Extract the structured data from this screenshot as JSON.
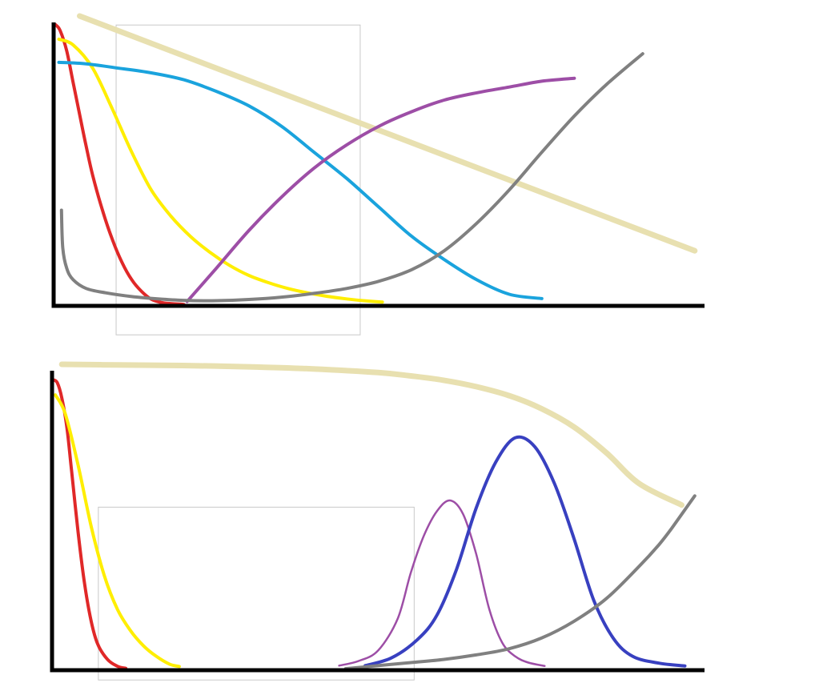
{
  "chart_data": [
    {
      "type": "line",
      "title": "",
      "xlabel": "",
      "ylabel": "",
      "xlim": [
        0,
        100
      ],
      "ylim": [
        0,
        100
      ],
      "grid": false,
      "legend": "none",
      "highlight_box": {
        "x": [
          9.6,
          47.1
        ],
        "y": [
          -10,
          96.9
        ]
      },
      "series": [
        {
          "color": "#e8e0b0",
          "width": 7,
          "x": [
            4,
            98.5
          ],
          "y": [
            100,
            19
          ]
        },
        {
          "color": "#e02828",
          "width": 4,
          "x": [
            0.3,
            1,
            2,
            3,
            4,
            5,
            6,
            7.5,
            9,
            10.5,
            12,
            13.5,
            15,
            16.5,
            18,
            19.5,
            20
          ],
          "y": [
            97,
            95,
            88,
            77,
            66,
            55,
            45,
            33,
            23,
            15,
            9,
            5,
            2.3,
            1.2,
            0.8,
            0.6,
            0.5
          ]
        },
        {
          "color": "#ffee00",
          "width": 4,
          "x": [
            0.8,
            3,
            6,
            9,
            12,
            15,
            18,
            21,
            24,
            27,
            30,
            33,
            36,
            39,
            42,
            45,
            48,
            50.5
          ],
          "y": [
            92,
            90,
            82,
            68,
            53,
            40,
            31,
            24,
            18.5,
            14,
            10.5,
            8,
            6,
            4.5,
            3.3,
            2.4,
            1.7,
            1.3
          ]
        },
        {
          "color": "#1aa3dd",
          "width": 4,
          "x": [
            0.8,
            5,
            10,
            15,
            20,
            25,
            30,
            35,
            40,
            45,
            50,
            55,
            60,
            65,
            70,
            75
          ],
          "y": [
            84,
            83.5,
            82,
            80.4,
            78,
            74,
            69,
            62,
            53,
            44,
            34,
            24,
            16,
            9,
            4,
            2.5
          ]
        },
        {
          "color": "#9d4ea6",
          "width": 4,
          "x": [
            20.5,
            25,
            30,
            35,
            40,
            45,
            50,
            55,
            60,
            65,
            70,
            75,
            80
          ],
          "y": [
            1.5,
            13,
            26,
            37.5,
            47.5,
            55.5,
            62,
            67,
            71,
            73.5,
            75.5,
            77.5,
            78.5
          ]
        },
        {
          "color": "#808080",
          "width": 4,
          "x": [
            1.2,
            1.4,
            2,
            3,
            5,
            8,
            12,
            16,
            20,
            25,
            30,
            35,
            40,
            45,
            50,
            55,
            60,
            65,
            70,
            75,
            80,
            85,
            90.5
          ],
          "y": [
            33,
            20,
            13,
            9,
            6,
            4.5,
            3.2,
            2.4,
            1.9,
            1.8,
            2.2,
            3.0,
            4.3,
            6.0,
            8.5,
            12.5,
            19,
            28.5,
            40,
            53,
            65.5,
            76.5,
            87
          ]
        }
      ]
    },
    {
      "type": "line",
      "title": "",
      "xlabel": "",
      "ylabel": "",
      "xlim": [
        0,
        100
      ],
      "ylim": [
        0,
        100
      ],
      "grid": false,
      "legend": "none",
      "highlight_box": {
        "x": [
          7.1,
          55.5
        ],
        "y": [
          -3.2,
          53.3
        ]
      },
      "series": [
        {
          "color": "#e8e0b0",
          "width": 7,
          "x": [
            1.5,
            10,
            20,
            30,
            40,
            50,
            55,
            60,
            65,
            70,
            75,
            80,
            85,
            90,
            96.5
          ],
          "y": [
            100,
            99.8,
            99.6,
            99.2,
            98.5,
            97.3,
            96.2,
            94.8,
            92.7,
            89.8,
            85.5,
            79.5,
            71,
            61,
            54
          ]
        },
        {
          "color": "#e02828",
          "width": 4,
          "x": [
            0.1,
            0.8,
            1.5,
            2.3,
            3,
            4,
            5,
            6,
            7,
            8.5,
            10,
            11.3
          ],
          "y": [
            95,
            94,
            89,
            79,
            65,
            45,
            28,
            16,
            8.5,
            3.5,
            1.3,
            0.6
          ]
        },
        {
          "color": "#ffee00",
          "width": 4,
          "x": [
            0.5,
            2,
            4,
            6,
            8,
            10,
            12,
            14,
            16,
            18,
            19.5
          ],
          "y": [
            90,
            84,
            67,
            47,
            31,
            20,
            13,
            8,
            4.5,
            2.0,
            1.2
          ]
        },
        {
          "color": "#9d4ea6",
          "width": 2.5,
          "x": [
            44,
            47,
            50,
            53,
            55,
            57,
            59,
            61,
            63,
            65,
            67,
            69,
            71,
            73,
            75.5
          ],
          "y": [
            1.5,
            3.0,
            6.5,
            17,
            32,
            44,
            52,
            55.5,
            51,
            38,
            20,
            9,
            4.5,
            2.5,
            1.4
          ]
        },
        {
          "color": "#3840c0",
          "width": 4,
          "x": [
            48,
            52,
            56,
            59,
            62,
            65,
            68,
            71,
            74,
            77,
            80,
            83,
            86,
            89,
            93,
            97
          ],
          "y": [
            1.5,
            4,
            10,
            18,
            33,
            53,
            68,
            76,
            73,
            61,
            43,
            23,
            10.5,
            4.5,
            2.3,
            1.4
          ]
        },
        {
          "color": "#808080",
          "width": 4,
          "x": [
            45,
            50,
            55,
            60,
            65,
            70,
            75,
            80,
            85,
            90,
            93,
            95,
            98.5
          ],
          "y": [
            0.5,
            1.5,
            2.5,
            3.5,
            5.0,
            7.0,
            10.5,
            16,
            23.5,
            34,
            41,
            46.5,
            57
          ]
        }
      ]
    }
  ]
}
